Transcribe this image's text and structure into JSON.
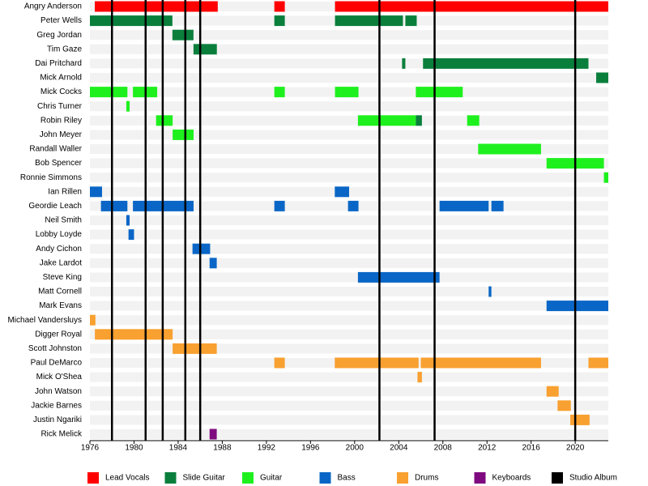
{
  "chart_data": {
    "type": "timeline",
    "xlim": [
      1976,
      2023
    ],
    "xticks": [
      1976,
      1980,
      1984,
      1988,
      1992,
      1996,
      2000,
      2004,
      2008,
      2012,
      2016,
      2020
    ],
    "legend": [
      {
        "name": "Lead Vocals",
        "color": "#ff0000"
      },
      {
        "name": "Slide Guitar",
        "color": "#0a7f3c"
      },
      {
        "name": "Guitar",
        "color": "#1ef01e"
      },
      {
        "name": "Bass",
        "color": "#0a66c6"
      },
      {
        "name": "Drums",
        "color": "#f8a030"
      },
      {
        "name": "Keyboards",
        "color": "#7f0a7f"
      },
      {
        "name": "Studio Album",
        "color": "#000000"
      }
    ],
    "albums": [
      1978,
      1981.05,
      1982.6,
      1984.65,
      1986,
      2002.25,
      2007.25,
      2020
    ],
    "members": [
      {
        "name": "Angry Anderson",
        "spans": [
          {
            "role": "Lead Vocals",
            "start": 1976.44,
            "end": 1987.59
          },
          {
            "role": "Lead Vocals",
            "start": 1992.72,
            "end": 1993.67
          },
          {
            "role": "Lead Vocals",
            "start": 1998.22,
            "end": 2023
          }
        ]
      },
      {
        "name": "Peter Wells",
        "spans": [
          {
            "role": "Slide Guitar",
            "start": 1976,
            "end": 1983.48
          },
          {
            "role": "Slide Guitar",
            "start": 1992.72,
            "end": 1993.67
          },
          {
            "role": "Slide Guitar",
            "start": 1998.22,
            "end": 2004.38
          },
          {
            "role": "Slide Guitar",
            "start": 2004.6,
            "end": 2005.63
          }
        ]
      },
      {
        "name": "Greg Jordan",
        "spans": [
          {
            "role": "Slide Guitar",
            "start": 1983.48,
            "end": 1985.39
          }
        ]
      },
      {
        "name": "Tim Gaze",
        "spans": [
          {
            "role": "Slide Guitar",
            "start": 1985.39,
            "end": 1987.51
          }
        ]
      },
      {
        "name": "Dai Pritchard",
        "spans": [
          {
            "role": "Slide Guitar",
            "start": 2004.3,
            "end": 2004.6
          },
          {
            "role": "Slide Guitar",
            "start": 2006.2,
            "end": 2021.2
          }
        ]
      },
      {
        "name": "Mick Arnold",
        "spans": [
          {
            "role": "Slide Guitar",
            "start": 2021.9,
            "end": 2023
          }
        ]
      },
      {
        "name": "Mick Cocks",
        "spans": [
          {
            "role": "Guitar",
            "start": 1976,
            "end": 1979.4
          },
          {
            "role": "Guitar",
            "start": 1979.9,
            "end": 1982.1
          },
          {
            "role": "Guitar",
            "start": 1992.72,
            "end": 1993.67
          },
          {
            "role": "Guitar",
            "start": 1998.22,
            "end": 2000.35
          },
          {
            "role": "Guitar",
            "start": 2005.55,
            "end": 2009.8
          }
        ]
      },
      {
        "name": "Chris Turner",
        "spans": [
          {
            "role": "Guitar",
            "start": 1979.3,
            "end": 1979.6
          }
        ]
      },
      {
        "name": "Robin Riley",
        "spans": [
          {
            "role": "Guitar",
            "start": 1982,
            "end": 1983.5
          },
          {
            "role": "Guitar",
            "start": 2000.3,
            "end": 2005.55
          },
          {
            "role": "Slide Guitar",
            "start": 2005.55,
            "end": 2006.1
          },
          {
            "role": "Guitar",
            "start": 2010.2,
            "end": 2011.3
          }
        ]
      },
      {
        "name": "John Meyer",
        "spans": [
          {
            "role": "Guitar",
            "start": 1983.5,
            "end": 1985.4
          }
        ]
      },
      {
        "name": "Randall Waller",
        "spans": [
          {
            "role": "Guitar",
            "start": 2011.2,
            "end": 2016.9
          }
        ]
      },
      {
        "name": "Bob Spencer",
        "spans": [
          {
            "role": "Guitar",
            "start": 2017.4,
            "end": 2022.6
          }
        ]
      },
      {
        "name": "Ronnie Simmons",
        "spans": [
          {
            "role": "Guitar",
            "start": 2022.6,
            "end": 2023
          }
        ]
      },
      {
        "name": "Ian Rillen",
        "spans": [
          {
            "role": "Bass",
            "start": 1976,
            "end": 1977.1
          },
          {
            "role": "Bass",
            "start": 1998.2,
            "end": 1999.5
          }
        ]
      },
      {
        "name": "Geordie Leach",
        "spans": [
          {
            "role": "Bass",
            "start": 1977,
            "end": 1979.4
          },
          {
            "role": "Bass",
            "start": 1979.9,
            "end": 1985.4
          },
          {
            "role": "Bass",
            "start": 1992.72,
            "end": 1993.67
          },
          {
            "role": "Bass",
            "start": 1999.4,
            "end": 2000.35
          },
          {
            "role": "Bass",
            "start": 2007.7,
            "end": 2012.15
          },
          {
            "role": "Bass",
            "start": 2012.4,
            "end": 2013.5
          }
        ]
      },
      {
        "name": "Neil Smith",
        "spans": [
          {
            "role": "Bass",
            "start": 1979.3,
            "end": 1979.6
          }
        ]
      },
      {
        "name": "Lobby Loyde",
        "spans": [
          {
            "role": "Bass",
            "start": 1979.5,
            "end": 1980
          }
        ]
      },
      {
        "name": "Andy Cichon",
        "spans": [
          {
            "role": "Bass",
            "start": 1985.3,
            "end": 1986.9
          }
        ]
      },
      {
        "name": "Jake Lardot",
        "spans": [
          {
            "role": "Bass",
            "start": 1986.85,
            "end": 1987.5
          }
        ]
      },
      {
        "name": "Steve King",
        "spans": [
          {
            "role": "Bass",
            "start": 2000.3,
            "end": 2007.7
          }
        ]
      },
      {
        "name": "Matt Cornell",
        "spans": [
          {
            "role": "Bass",
            "start": 2012.15,
            "end": 2012.4
          }
        ]
      },
      {
        "name": "Mark Evans",
        "spans": [
          {
            "role": "Bass",
            "start": 2017.4,
            "end": 2023
          }
        ]
      },
      {
        "name": "Michael Vandersluys",
        "spans": [
          {
            "role": "Drums",
            "start": 1976,
            "end": 1976.5
          }
        ]
      },
      {
        "name": "Digger Royal",
        "spans": [
          {
            "role": "Drums",
            "start": 1976.45,
            "end": 1983.5
          }
        ]
      },
      {
        "name": "Scott Johnston",
        "spans": [
          {
            "role": "Drums",
            "start": 1983.5,
            "end": 1987.5
          }
        ]
      },
      {
        "name": "Paul DeMarco",
        "spans": [
          {
            "role": "Drums",
            "start": 1992.72,
            "end": 1993.67
          },
          {
            "role": "Drums",
            "start": 1998.2,
            "end": 2005.8
          },
          {
            "role": "Drums",
            "start": 2006,
            "end": 2016.9
          },
          {
            "role": "Drums",
            "start": 2021.2,
            "end": 2023
          }
        ]
      },
      {
        "name": "Mick O'Shea",
        "spans": [
          {
            "role": "Drums",
            "start": 2005.7,
            "end": 2006.1
          }
        ]
      },
      {
        "name": "John Watson",
        "spans": [
          {
            "role": "Drums",
            "start": 2017.4,
            "end": 2018.5
          }
        ]
      },
      {
        "name": "Jackie Barnes",
        "spans": [
          {
            "role": "Drums",
            "start": 2018.4,
            "end": 2019.6
          }
        ]
      },
      {
        "name": "Justin Ngariki",
        "spans": [
          {
            "role": "Drums",
            "start": 2019.55,
            "end": 2021.3
          }
        ]
      },
      {
        "name": "Rick Melick",
        "spans": [
          {
            "role": "Keyboards",
            "start": 1986.85,
            "end": 1987.5
          }
        ]
      }
    ]
  }
}
